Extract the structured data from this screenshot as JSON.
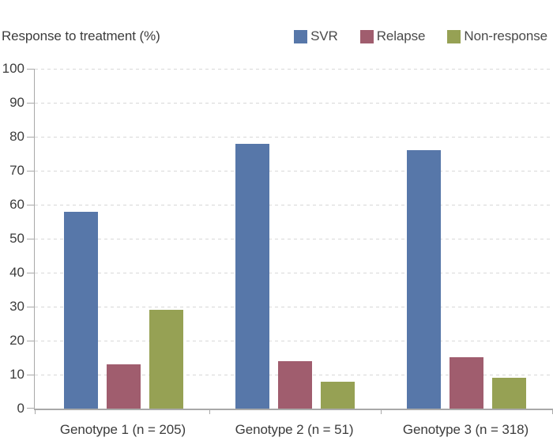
{
  "chart_data": {
    "type": "bar",
    "title": "Response to treatment (%)",
    "categories": [
      "Genotype 1 (n = 205)",
      "Genotype 2 (n = 51)",
      "Genotype 3 (n = 318)"
    ],
    "series": [
      {
        "name": "SVR",
        "color": "#5777a9",
        "values": [
          58,
          78,
          76
        ]
      },
      {
        "name": "Relapse",
        "color": "#a05d6e",
        "values": [
          13,
          14,
          15
        ]
      },
      {
        "name": "Non-response",
        "color": "#96a154",
        "values": [
          29,
          8,
          9
        ]
      }
    ],
    "xlabel": "",
    "ylabel": "",
    "ylim": [
      0,
      100
    ],
    "yticks": [
      0,
      10,
      20,
      30,
      40,
      50,
      60,
      70,
      80,
      90,
      100
    ],
    "grid": "horizontal-dashed",
    "legend_position": "top-right",
    "colors": {
      "axis": "#a9a9a9",
      "gridline": "#d8d8d8",
      "text": "#3c3c3c",
      "background": "#ffffff"
    }
  }
}
